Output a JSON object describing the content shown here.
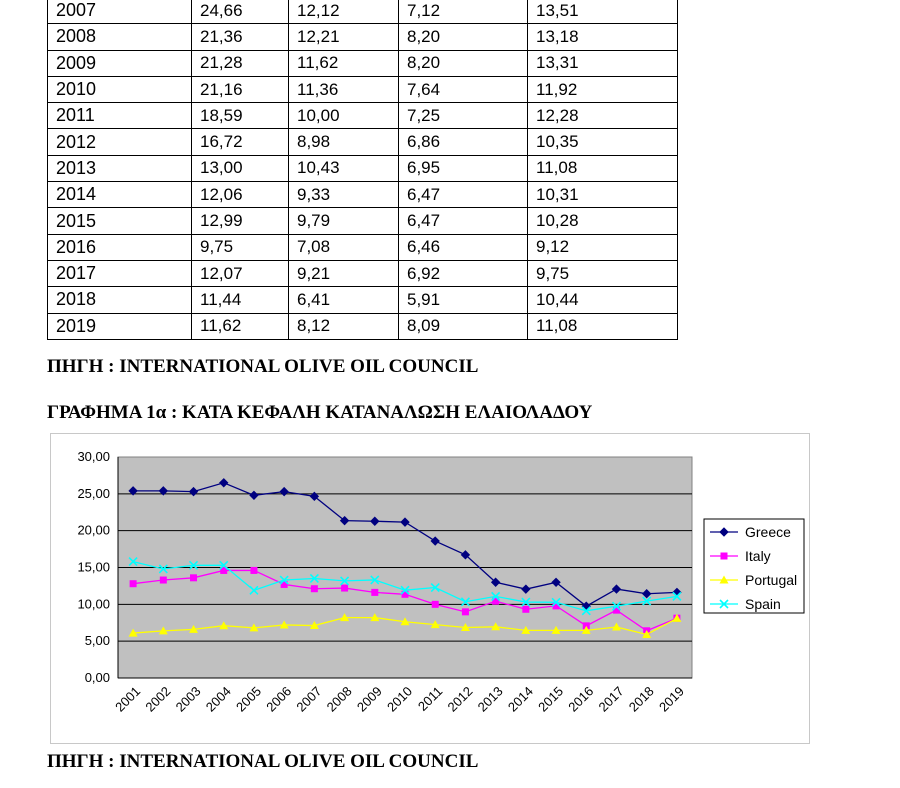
{
  "table": {
    "rows": [
      [
        "2007",
        "24,66",
        "12,12",
        "7,12",
        "13,51"
      ],
      [
        "2008",
        "21,36",
        "12,21",
        "8,20",
        "13,18"
      ],
      [
        "2009",
        "21,28",
        "11,62",
        "8,20",
        "13,31"
      ],
      [
        "2010",
        "21,16",
        "11,36",
        "7,64",
        "11,92"
      ],
      [
        "2011",
        "18,59",
        "10,00",
        "7,25",
        "12,28"
      ],
      [
        "2012",
        "16,72",
        "8,98",
        "6,86",
        "10,35"
      ],
      [
        "2013",
        "13,00",
        "10,43",
        "6,95",
        "11,08"
      ],
      [
        "2014",
        "12,06",
        "9,33",
        "6,47",
        "10,31"
      ],
      [
        "2015",
        "12,99",
        "9,79",
        "6,47",
        "10,28"
      ],
      [
        "2016",
        "9,75",
        "7,08",
        "6,46",
        "9,12"
      ],
      [
        "2017",
        "12,07",
        "9,21",
        "6,92",
        "9,75"
      ],
      [
        "2018",
        "11,44",
        "6,41",
        "5,91",
        "10,44"
      ],
      [
        "2019",
        "11,62",
        "8,12",
        "8,09",
        "11,08"
      ]
    ]
  },
  "source_label_1": "ΠΗΓΗ : INTERNATIONAL OLIVE OIL COUNCIL",
  "chart_heading": "ΓΡΑΦΗΜΑ 1α : ΚΑΤΑ ΚΕΦΑΛΗ ΚΑΤΑΝΑΛΩΣΗ ΕΛΑΙΟΛΑΔΟΥ",
  "source_label_2": "ΠΗΓΗ : INTERNATIONAL OLIVE OIL COUNCIL",
  "chart_data": {
    "type": "line",
    "title": "",
    "xlabel": "",
    "ylabel": "",
    "categories": [
      "2001",
      "2002",
      "2003",
      "2004",
      "2005",
      "2006",
      "2007",
      "2008",
      "2009",
      "2010",
      "2011",
      "2012",
      "2013",
      "2014",
      "2015",
      "2016",
      "2017",
      "2018",
      "2019"
    ],
    "ylim": [
      0,
      30
    ],
    "yticks": [
      "0,00",
      "5,00",
      "10,00",
      "15,00",
      "20,00",
      "25,00",
      "30,00"
    ],
    "grid": true,
    "plot_background": "#c0c0c0",
    "legend_position": "right",
    "series": [
      {
        "name": "Greece",
        "color": "#000080",
        "marker": "diamond",
        "values": [
          25.4,
          25.4,
          25.3,
          26.5,
          24.8,
          25.3,
          24.66,
          21.36,
          21.28,
          21.16,
          18.59,
          16.72,
          13.0,
          12.06,
          12.99,
          9.75,
          12.07,
          11.44,
          11.62
        ]
      },
      {
        "name": "Italy",
        "color": "#ff00ff",
        "marker": "square",
        "values": [
          12.8,
          13.3,
          13.6,
          14.6,
          14.6,
          12.7,
          12.12,
          12.21,
          11.62,
          11.36,
          10.0,
          8.98,
          10.43,
          9.33,
          9.79,
          7.08,
          9.21,
          6.41,
          8.12
        ]
      },
      {
        "name": "Portugal",
        "color": "#ffff00",
        "marker": "triangle",
        "values": [
          6.1,
          6.4,
          6.6,
          7.1,
          6.8,
          7.2,
          7.12,
          8.2,
          8.2,
          7.64,
          7.25,
          6.86,
          6.95,
          6.47,
          6.47,
          6.46,
          6.92,
          5.91,
          8.09
        ]
      },
      {
        "name": "Spain",
        "color": "#00ffff",
        "marker": "x",
        "values": [
          15.8,
          14.8,
          15.3,
          15.3,
          11.9,
          13.3,
          13.51,
          13.18,
          13.31,
          11.92,
          12.28,
          10.35,
          11.08,
          10.31,
          10.28,
          9.12,
          9.75,
          10.44,
          11.08
        ]
      }
    ]
  }
}
